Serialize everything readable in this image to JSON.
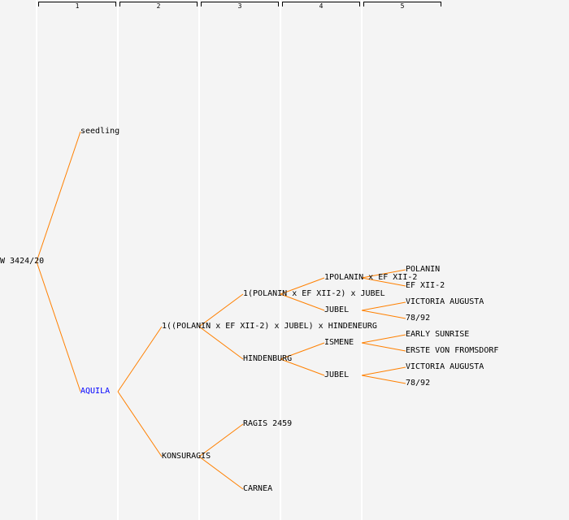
{
  "generations": [
    "1",
    "2",
    "3",
    "4",
    "5"
  ],
  "colors": {
    "line": "#ff8000",
    "highlight": "#0000ff",
    "text": "#000000",
    "background": "#f4f4f4"
  },
  "tree": {
    "label": "W 3424/20",
    "parents": [
      {
        "label": "seedling"
      },
      {
        "label": "AQUILA",
        "highlight": true,
        "parents": [
          {
            "label": "1((POLANIN x EF XII-2) x JUBEL) x HINDENEURG",
            "parents": [
              {
                "label": "1(POLANIN x EF XII-2) x JUBEL",
                "parents": [
                  {
                    "label": "1POLANIN x EF XII-2",
                    "parents": [
                      {
                        "label": "POLANIN"
                      },
                      {
                        "label": "EF XII-2"
                      }
                    ]
                  },
                  {
                    "label": "JUBEL",
                    "parents": [
                      {
                        "label": "VICTORIA AUGUSTA"
                      },
                      {
                        "label": "78/92"
                      }
                    ]
                  }
                ]
              },
              {
                "label": "HINDENBURG",
                "parents": [
                  {
                    "label": "ISMENE",
                    "parents": [
                      {
                        "label": "EARLY SUNRISE"
                      },
                      {
                        "label": "ERSTE VON FROMSDORF"
                      }
                    ]
                  },
                  {
                    "label": "JUBEL",
                    "parents": [
                      {
                        "label": "VICTORIA AUGUSTA"
                      },
                      {
                        "label": "78/92"
                      }
                    ]
                  }
                ]
              }
            ]
          },
          {
            "label": "KONSURAGIS",
            "parents": [
              {
                "label": "RAGIS 2459"
              },
              {
                "label": "CARNEA"
              }
            ]
          }
        ]
      }
    ]
  }
}
